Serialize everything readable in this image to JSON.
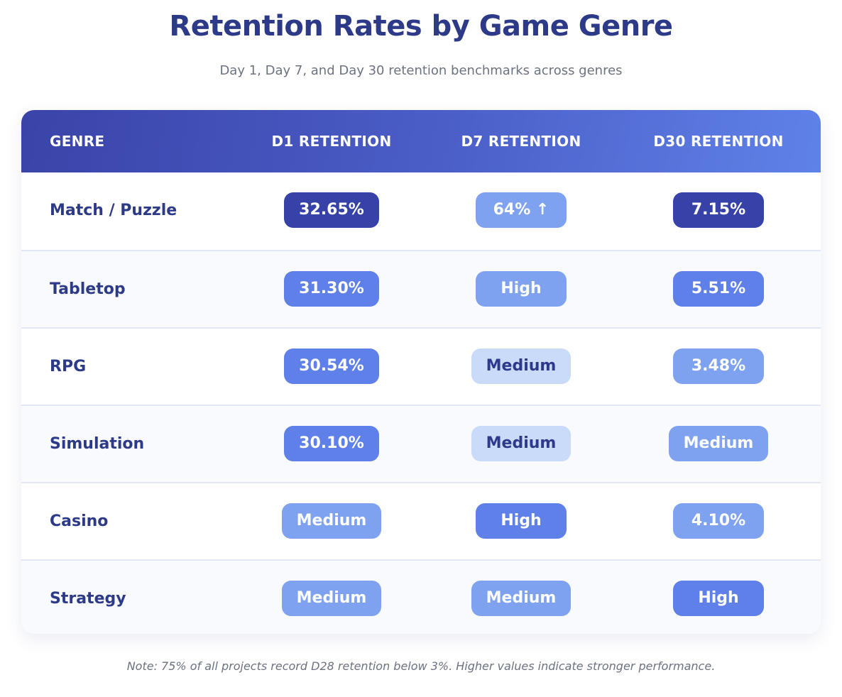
{
  "title": "Retention Rates by Game Genre",
  "subtitle": "Day 1, Day 7, and Day 30 retention benchmarks across genres",
  "note": "Note: 75% of all projects record D28 retention below 3%. Higher values indicate stronger performance.",
  "colors": {
    "dark": "#3742a8",
    "mid": "#5f80e8",
    "light": "#7ea2ef",
    "pale": "#cadaf9",
    "text": "#2d3a87"
  },
  "chart_data": {
    "type": "table",
    "columns": [
      "GENRE",
      "D1 RETENTION",
      "D7 RETENTION",
      "D30 RETENTION"
    ],
    "rows": [
      {
        "genre": "Match / Puzzle",
        "cells": [
          {
            "text": "32.65%",
            "level": "dark"
          },
          {
            "text": "64% ↑",
            "level": "light"
          },
          {
            "text": "7.15%",
            "level": "dark"
          }
        ]
      },
      {
        "genre": "Tabletop",
        "cells": [
          {
            "text": "31.30%",
            "level": "mid"
          },
          {
            "text": "High",
            "level": "light"
          },
          {
            "text": "5.51%",
            "level": "mid"
          }
        ]
      },
      {
        "genre": "RPG",
        "cells": [
          {
            "text": "30.54%",
            "level": "mid"
          },
          {
            "text": "Medium",
            "level": "pale"
          },
          {
            "text": "3.48%",
            "level": "light"
          }
        ]
      },
      {
        "genre": "Simulation",
        "cells": [
          {
            "text": "30.10%",
            "level": "mid"
          },
          {
            "text": "Medium",
            "level": "pale"
          },
          {
            "text": "Medium",
            "level": "light"
          }
        ]
      },
      {
        "genre": "Casino",
        "cells": [
          {
            "text": "Medium",
            "level": "light"
          },
          {
            "text": "High",
            "level": "mid"
          },
          {
            "text": "4.10%",
            "level": "light"
          }
        ]
      },
      {
        "genre": "Strategy",
        "cells": [
          {
            "text": "Medium",
            "level": "light"
          },
          {
            "text": "Medium",
            "level": "light"
          },
          {
            "text": "High",
            "level": "mid"
          }
        ]
      }
    ]
  }
}
